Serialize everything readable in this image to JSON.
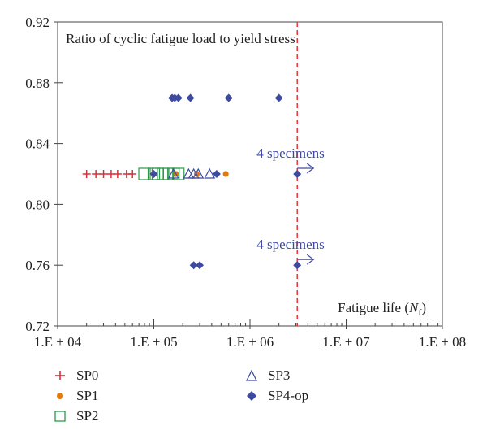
{
  "chart_data": {
    "type": "scatter",
    "title": "",
    "annotation_text": "Ratio of cyclic fatigue load to yield stress",
    "x_label": "Fatigue life (N_f)",
    "x_label_parts": {
      "main": "Fatigue life (",
      "italic": "N",
      "sub": "f",
      "close": ")"
    },
    "y_label": "",
    "x_scale": "log",
    "xlim": [
      10000,
      100000000
    ],
    "ylim": [
      0.72,
      0.92
    ],
    "x_ticks": [
      10000,
      100000,
      1000000,
      10000000,
      100000000
    ],
    "x_tick_labels": [
      "1.E + 04",
      "1.E + 05",
      "1.E + 06",
      "1.E + 07",
      "1.E + 08"
    ],
    "y_ticks": [
      0.72,
      0.76,
      0.8,
      0.84,
      0.88,
      0.92
    ],
    "y_tick_labels": [
      "0.72",
      "0.76",
      "0.80",
      "0.84",
      "0.88",
      "0.92"
    ],
    "reference_line": {
      "x": 3100000,
      "color": "#e8383d",
      "style": "dashed"
    },
    "annotations": [
      {
        "text": "4 specimens",
        "x": 3100000,
        "y": 0.82
      },
      {
        "text": "4 specimens",
        "x": 3100000,
        "y": 0.76
      }
    ],
    "series": [
      {
        "name": "SP0",
        "marker": "plus",
        "color": "#d8303a",
        "points": [
          [
            20000,
            0.82
          ],
          [
            25000,
            0.82
          ],
          [
            30000,
            0.82
          ],
          [
            36000,
            0.82
          ],
          [
            42000,
            0.82
          ],
          [
            52000,
            0.82
          ],
          [
            60000,
            0.82
          ]
        ]
      },
      {
        "name": "SP1",
        "marker": "circle",
        "color": "#e07b10",
        "points": [
          [
            170000,
            0.82
          ],
          [
            280000,
            0.82
          ],
          [
            560000,
            0.82
          ]
        ]
      },
      {
        "name": "SP2",
        "marker": "square",
        "color": "#2a9a48",
        "points": [
          [
            80000,
            0.82
          ],
          [
            100000,
            0.82
          ],
          [
            110000,
            0.82
          ],
          [
            125000,
            0.82
          ],
          [
            140000,
            0.82
          ],
          [
            160000,
            0.82
          ],
          [
            180000,
            0.82
          ]
        ]
      },
      {
        "name": "SP3",
        "marker": "triangle",
        "color": "#3d4aa0",
        "points": [
          [
            160000,
            0.82
          ],
          [
            230000,
            0.82
          ],
          [
            260000,
            0.82
          ],
          [
            290000,
            0.82
          ],
          [
            380000,
            0.82
          ]
        ]
      },
      {
        "name": "SP4-op",
        "marker": "diamond",
        "color": "#3d4aa0",
        "points": [
          [
            100000,
            0.82
          ],
          [
            450000,
            0.82
          ],
          [
            3100000,
            0.82
          ],
          [
            155000,
            0.87
          ],
          [
            165000,
            0.87
          ],
          [
            180000,
            0.87
          ],
          [
            240000,
            0.87
          ],
          [
            600000,
            0.87
          ],
          [
            2000000,
            0.87
          ],
          [
            260000,
            0.76
          ],
          [
            300000,
            0.76
          ],
          [
            3100000,
            0.76
          ]
        ]
      }
    ]
  }
}
